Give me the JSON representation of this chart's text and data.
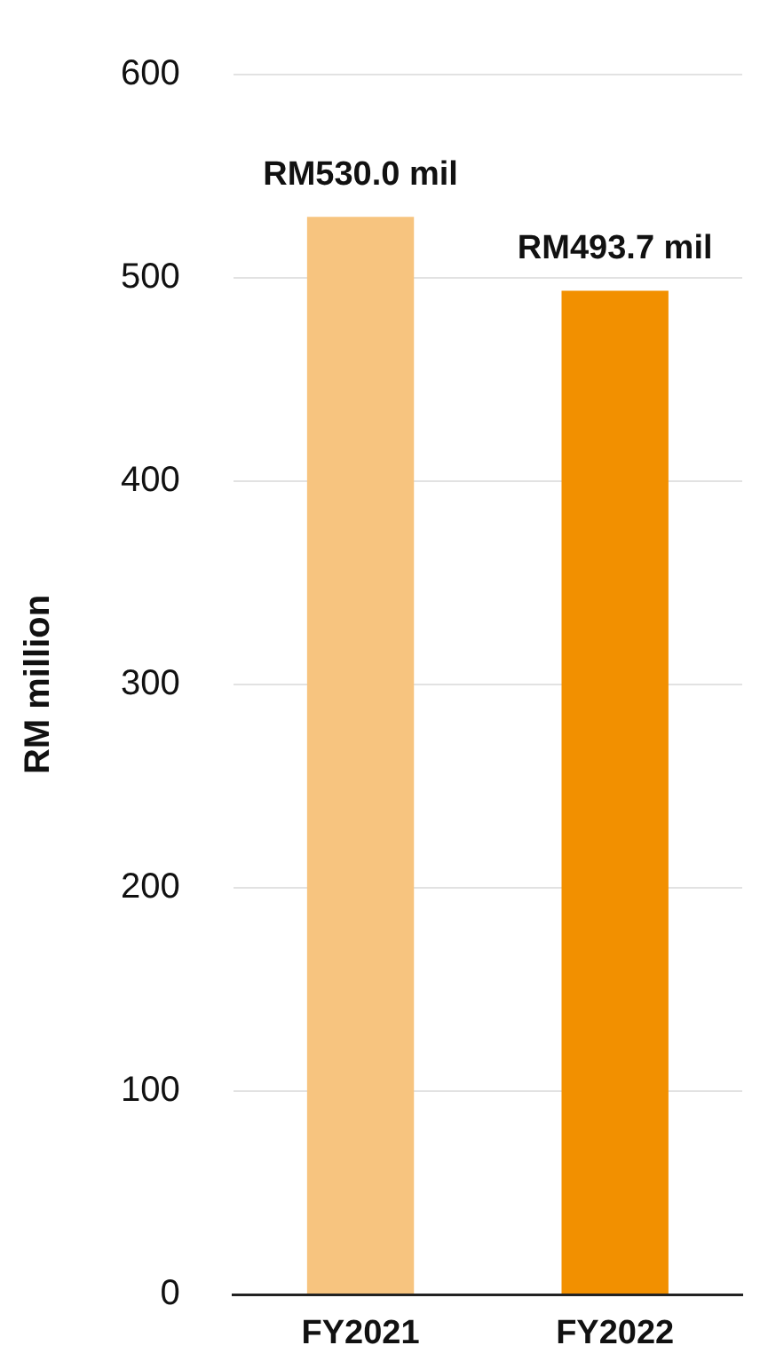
{
  "chart_data": {
    "type": "bar",
    "ylabel": "RM million",
    "categories": [
      "FY2021",
      "FY2022"
    ],
    "values": [
      530.0,
      493.7
    ],
    "colors": [
      "#f7c47f",
      "#f29000"
    ],
    "value_labels": [
      "RM530.0 mil",
      "RM493.7 mil"
    ],
    "ylim": [
      0,
      600
    ],
    "yticks": [
      0,
      100,
      200,
      300,
      400,
      500,
      600
    ],
    "grid": "y"
  }
}
